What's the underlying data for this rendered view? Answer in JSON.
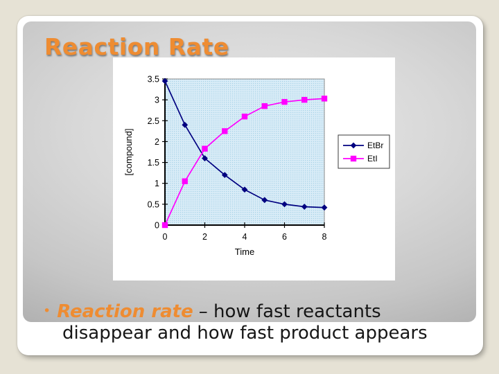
{
  "slide": {
    "title": "Reaction Rate",
    "bullet": {
      "marker": "•",
      "term": "Reaction rate",
      "rest_line1": "– how fast reactants",
      "line2": "disappear and how fast product appears"
    }
  },
  "colors": {
    "accent_orange": "#EE8C32",
    "etbr_navy": "#000080",
    "eti_magenta": "#FF00FF",
    "plot_bg": "#D9ECF7",
    "plot_dot": "#A6D2E6",
    "outer_background": "#E6E2D5"
  },
  "chart_data": {
    "type": "line",
    "x": [
      0,
      1,
      2,
      3,
      4,
      5,
      6,
      7,
      8
    ],
    "series": [
      {
        "name": "EtBr",
        "color": "#000080",
        "marker": "diamond",
        "values": [
          3.45,
          2.4,
          1.6,
          1.2,
          0.85,
          0.6,
          0.5,
          0.44,
          0.42
        ]
      },
      {
        "name": "EtI",
        "color": "#FF00FF",
        "marker": "square",
        "values": [
          0,
          1.05,
          1.83,
          2.25,
          2.6,
          2.85,
          2.95,
          3.0,
          3.03
        ]
      }
    ],
    "xlabel": "Time",
    "ylabel": "[compound]",
    "xlim": [
      0,
      8
    ],
    "ylim": [
      0,
      3.5
    ],
    "y_ticks": [
      0,
      0.5,
      1,
      1.5,
      2,
      2.5,
      3,
      3.5
    ],
    "x_tick_labels": [
      0,
      2,
      4,
      6,
      8
    ],
    "legend_position": "right",
    "grid": false,
    "plot_area_fill": "dotted-light-blue"
  }
}
